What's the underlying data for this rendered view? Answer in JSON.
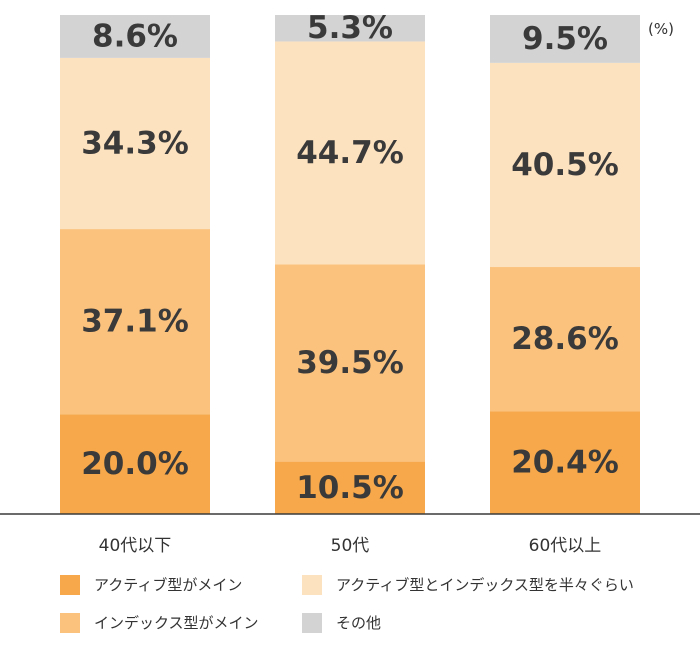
{
  "chart_data": {
    "type": "bar",
    "stacked": true,
    "unit": "(%)",
    "categories": [
      "40代以下",
      "50代",
      "60代以上"
    ],
    "series": [
      {
        "name": "アクティブ型がメイン",
        "color": "#f7a84a",
        "values": [
          20.0,
          10.5,
          20.4
        ],
        "labels": [
          "20.0%",
          "10.5%",
          "20.4%"
        ]
      },
      {
        "name": "インデックス型がメイン",
        "color": "#fbc27e",
        "values": [
          37.1,
          39.5,
          28.6
        ],
        "labels": [
          "37.1%",
          "39.5%",
          "28.6%"
        ]
      },
      {
        "name": "アクティブ型とインデックス型を半々ぐらい",
        "color": "#fde2bf",
        "values": [
          34.3,
          44.7,
          40.5
        ],
        "labels": [
          "34.3%",
          "44.7%",
          "40.5%"
        ]
      },
      {
        "name": "その他",
        "color": "#d4d3d4",
        "values": [
          8.6,
          5.3,
          9.5
        ],
        "labels": [
          "8.6%",
          "5.3%",
          "9.5%"
        ]
      }
    ],
    "ylim": [
      0,
      100
    ],
    "grid": false,
    "legend_position": "bottom"
  }
}
